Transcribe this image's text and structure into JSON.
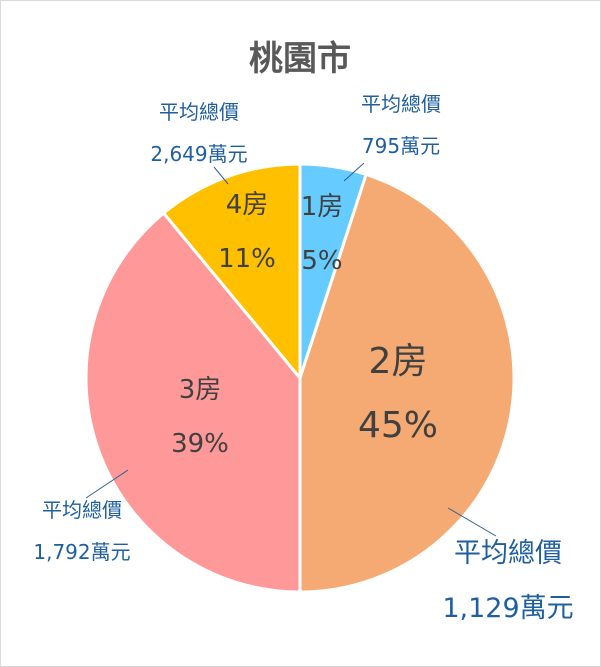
{
  "chart_data": {
    "type": "pie",
    "title": "桃園市",
    "slices": [
      {
        "category": "1房",
        "percent_label": "5%",
        "value": 5,
        "color": "#66ccff",
        "avg_label": "平均總價",
        "avg_value": "795萬元"
      },
      {
        "category": "2房",
        "percent_label": "45%",
        "value": 45,
        "color": "#f4aa72",
        "avg_label": "平均總價",
        "avg_value": "1,129萬元"
      },
      {
        "category": "3房",
        "percent_label": "39%",
        "value": 39,
        "color": "#ff9898",
        "avg_label": "平均總價",
        "avg_value": "1,792萬元"
      },
      {
        "category": "4房",
        "percent_label": "11%",
        "value": 11,
        "color": "#ffc000",
        "avg_label": "平均總價",
        "avg_value": "2,649萬元"
      }
    ]
  }
}
